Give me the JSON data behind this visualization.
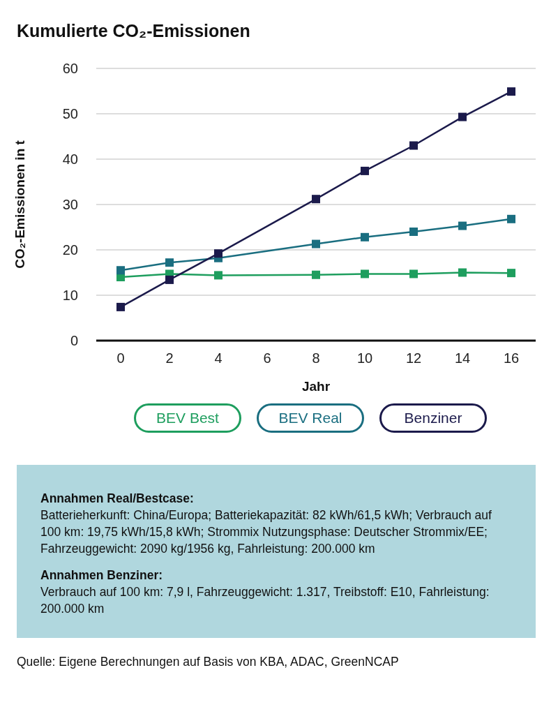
{
  "chart_data": {
    "type": "line",
    "title": "Kumulierte CO₂-Emissionen",
    "xlabel": "Jahr",
    "ylabel": "CO₂-Emissionen in t",
    "x": [
      0,
      2,
      4,
      8,
      10,
      12,
      14,
      16
    ],
    "series": [
      {
        "name": "BEV Best",
        "color": "#1e9e5e",
        "values": [
          14,
          14.7,
          14.4,
          14.5,
          14.7,
          14.7,
          15,
          14.9
        ]
      },
      {
        "name": "BEV Real",
        "color": "#1a6e80",
        "values": [
          15.5,
          17.2,
          18.2,
          21.3,
          22.8,
          24,
          25.3,
          26.8
        ]
      },
      {
        "name": "Benziner",
        "color": "#1b1a4b",
        "values": [
          7.4,
          13.4,
          19.2,
          31.2,
          37.4,
          43,
          49.3,
          54.9
        ]
      }
    ],
    "xlim": [
      -1,
      17
    ],
    "xticks": [
      0,
      2,
      4,
      6,
      8,
      10,
      12,
      14,
      16
    ],
    "ylim": [
      0,
      60
    ],
    "yticks": [
      0,
      10,
      20,
      30,
      40,
      50,
      60
    ],
    "grid": "y",
    "legend": "bottom",
    "marker": "square",
    "line_style": "solid",
    "annotations": [
      "Annahmen Real/Bestcase:",
      "Batterieherkunft: China/Europa; Batteriekapazität: 82 kWh/61,5 kWh; Verbrauch auf 100 km: 19,75 kWh/15,8 kWh; Strommix Nutzungsphase: Deutscher Strommix/EE; Fahrzeuggewicht: 2090 kg/1956 kg, Fahrleistung: 200.000 km",
      "Annahmen Benziner:",
      "Verbrauch auf 100 km: 7,9 l, Fahrzeuggewicht: 1.317, Treibstoff: E10, Fahrleistung: 200.000 km",
      "Quelle: Eigene Berechnungen auf Basis von KBA, ADAC, GreenNCAP"
    ]
  }
}
